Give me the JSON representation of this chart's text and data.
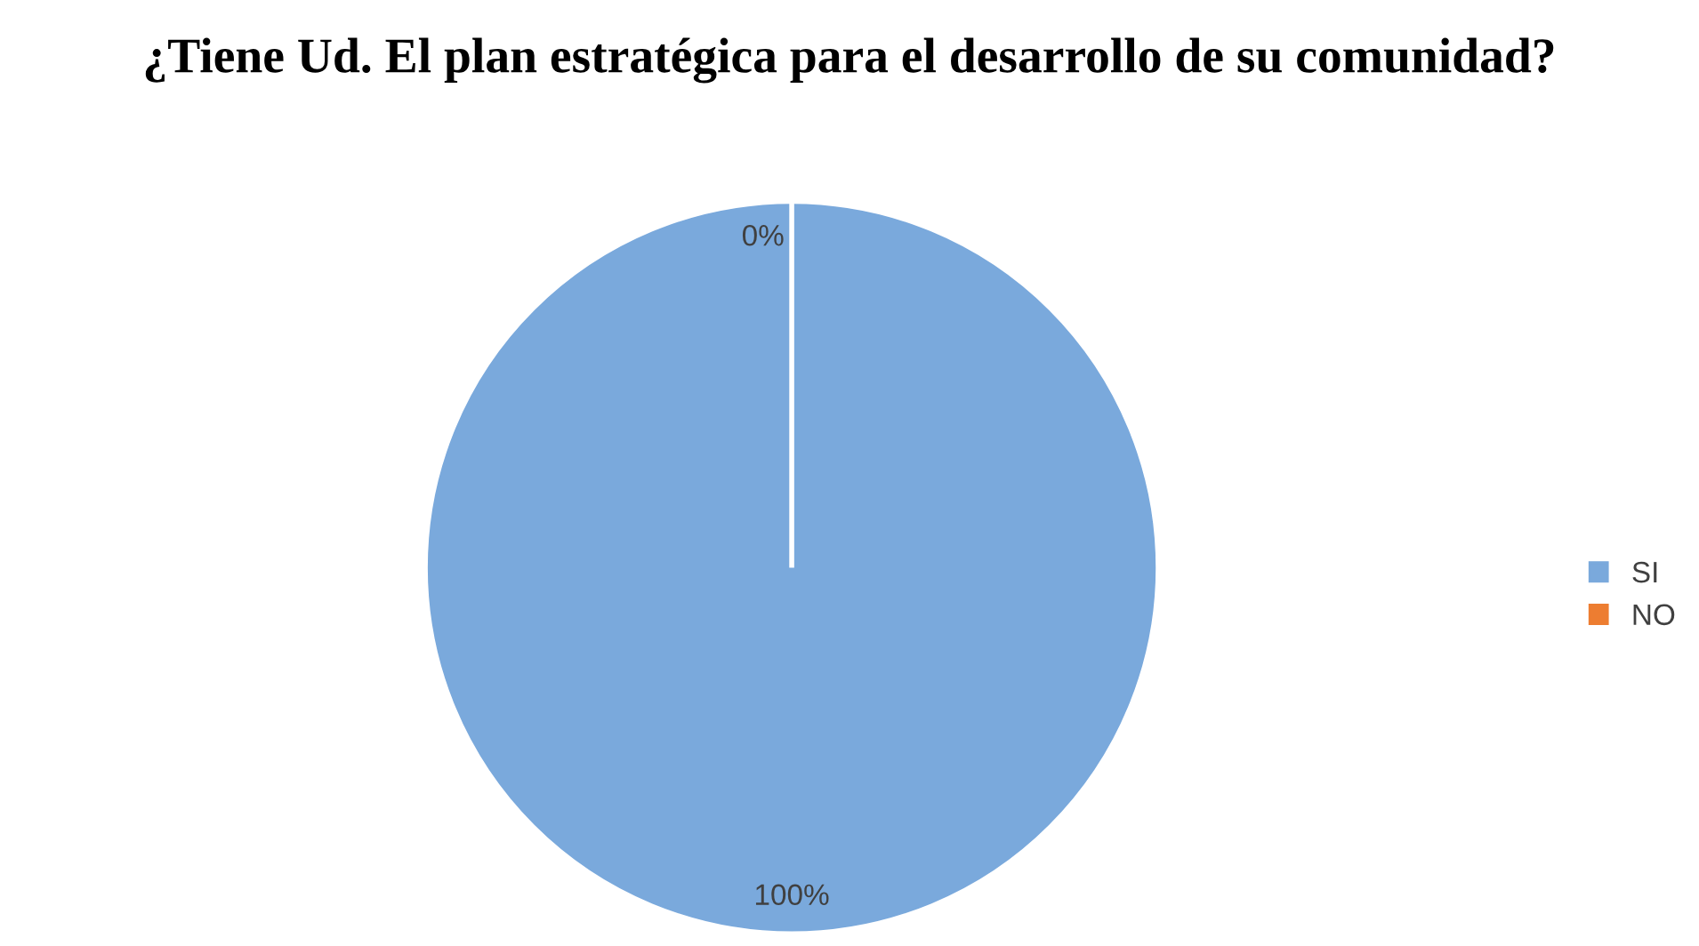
{
  "chart_data": {
    "type": "pie",
    "title": "¿Tiene Ud. El plan estratégica para el desarrollo de su comunidad?",
    "categories": [
      "SI",
      "NO"
    ],
    "values": [
      100,
      0
    ],
    "colors": [
      "#7aa9dc",
      "#ed7d31"
    ],
    "value_labels": [
      "100%",
      "0%"
    ],
    "legend": "right"
  }
}
